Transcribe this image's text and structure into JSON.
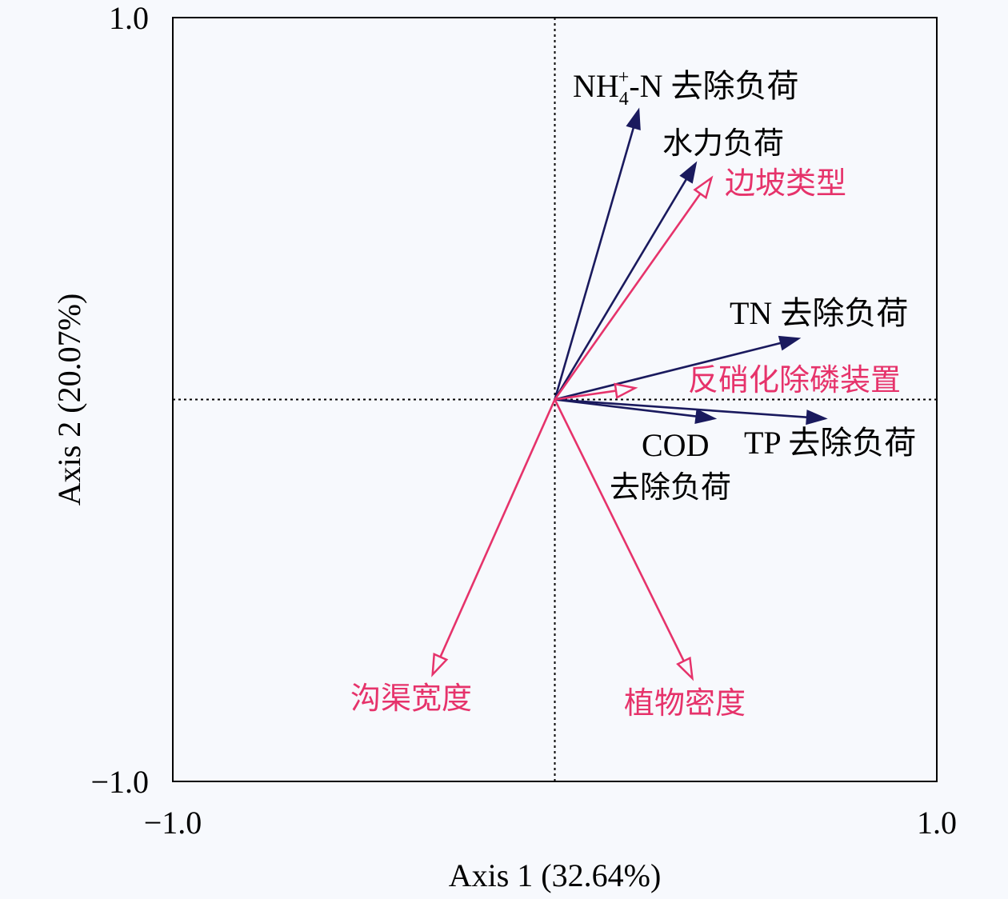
{
  "chart_data": {
    "type": "rda-biplot",
    "xlabel": "Axis 1 (32.64%)",
    "ylabel": "Axis 2 (20.07%)",
    "xlim": [
      -1.0,
      1.0
    ],
    "ylim": [
      -1.0,
      1.0
    ],
    "x_ticks": [
      "−1.0",
      "1.0"
    ],
    "y_ticks": [
      "1.0",
      "−1.0"
    ],
    "grid": false,
    "origin_lines": "dotted",
    "colors": {
      "response": "#1a1a5e",
      "explanatory": "#e6336b",
      "axis": "#000000"
    },
    "response_vectors": [
      {
        "id": "nh4",
        "prefix": "NH",
        "sub": "4",
        "sup": "+",
        "suffix": "-N 去除负荷",
        "x": 0.22,
        "y": 0.76
      },
      {
        "id": "hydraulic",
        "label": "水力负荷",
        "x": 0.37,
        "y": 0.62
      },
      {
        "id": "tn",
        "label": "TN 去除负荷",
        "x": 0.64,
        "y": 0.16
      },
      {
        "id": "cod",
        "label_lines": [
          "COD",
          "去除负荷"
        ],
        "x": 0.42,
        "y": -0.05
      },
      {
        "id": "tp",
        "label": "TP 去除负荷",
        "x": 0.71,
        "y": -0.05
      }
    ],
    "explanatory_vectors": [
      {
        "id": "slope",
        "label": "边坡类型",
        "x": 0.41,
        "y": 0.58
      },
      {
        "id": "denitrification",
        "label": "反硝化除磷装置",
        "x": 0.21,
        "y": 0.03
      },
      {
        "id": "width",
        "label": "沟渠宽度",
        "x": -0.32,
        "y": -0.72
      },
      {
        "id": "density",
        "label": "植物密度",
        "x": 0.36,
        "y": -0.73
      }
    ]
  }
}
